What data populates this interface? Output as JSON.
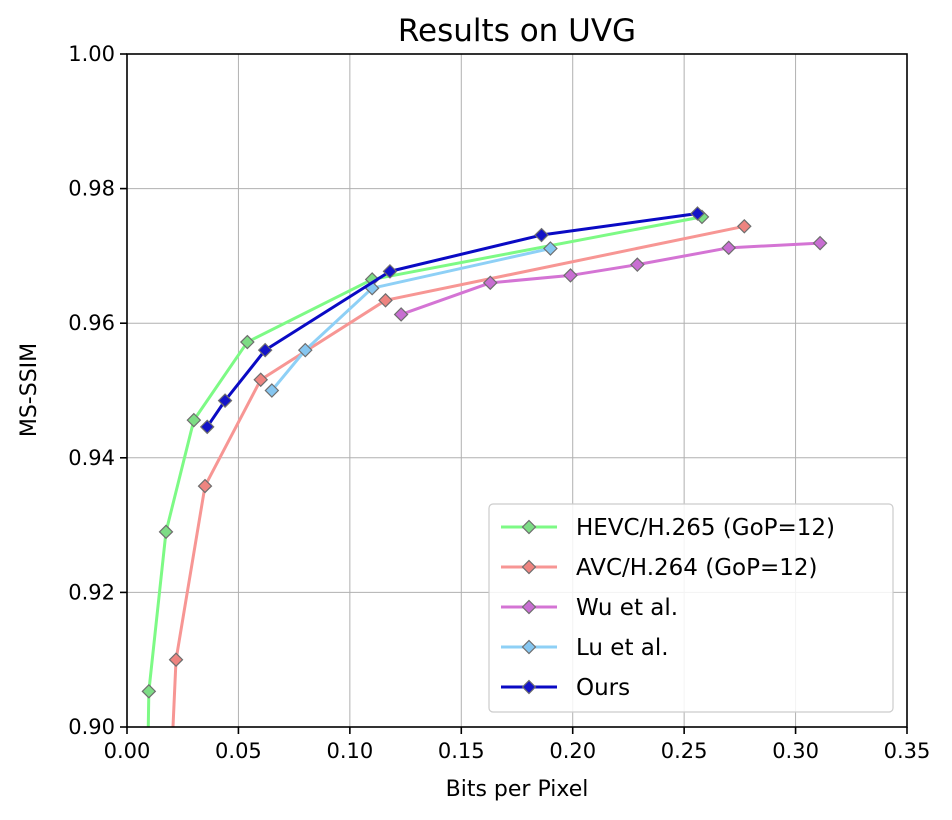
{
  "chart_data": {
    "type": "line",
    "title": "Results on UVG",
    "xlabel": "Bits per Pixel",
    "ylabel": "MS-SSIM",
    "xlim": [
      0.0,
      0.35
    ],
    "ylim": [
      0.9,
      1.0
    ],
    "xticks": [
      "0.00",
      "0.05",
      "0.10",
      "0.15",
      "0.20",
      "0.25",
      "0.30",
      "0.35"
    ],
    "yticks": [
      "0.90",
      "0.92",
      "0.94",
      "0.96",
      "0.98",
      "1.00"
    ],
    "grid": true,
    "legend_position": "lower-right",
    "marker": "diamond",
    "series": [
      {
        "name": "HEVC/H.265 (GoP=12)",
        "color": "#7dfa85",
        "marker_color": "#7ddc85",
        "x": [
          0.0095,
          0.0098,
          0.0175,
          0.03,
          0.054,
          0.11,
          0.258
        ],
        "y": [
          0.899,
          0.9053,
          0.929,
          0.9456,
          0.9572,
          0.9665,
          0.9758
        ]
      },
      {
        "name": "AVC/H.264 (GoP=12)",
        "color": "#f79694",
        "marker_color": "#ee8480",
        "x": [
          0.0205,
          0.022,
          0.035,
          0.06,
          0.116,
          0.277
        ],
        "y": [
          0.899,
          0.91,
          0.9358,
          0.9516,
          0.9634,
          0.9744
        ]
      },
      {
        "name": "Wu et al.",
        "color": "#d474d4",
        "marker_color": "#c86ed2",
        "x": [
          0.123,
          0.163,
          0.199,
          0.229,
          0.27,
          0.311
        ],
        "y": [
          0.9613,
          0.966,
          0.9671,
          0.9687,
          0.9712,
          0.9719
        ]
      },
      {
        "name": "Lu et al.",
        "color": "#8ed0f6",
        "marker_color": "#86c6f0",
        "x": [
          0.065,
          0.08,
          0.11,
          0.19
        ],
        "y": [
          0.95,
          0.956,
          0.9652,
          0.9711
        ]
      },
      {
        "name": "Ours",
        "color": "#0a0ac4",
        "marker_color": "#1414c8",
        "x": [
          0.036,
          0.044,
          0.062,
          0.118,
          0.186,
          0.256
        ],
        "y": [
          0.9446,
          0.9485,
          0.956,
          0.9677,
          0.9731,
          0.9763
        ]
      }
    ]
  }
}
